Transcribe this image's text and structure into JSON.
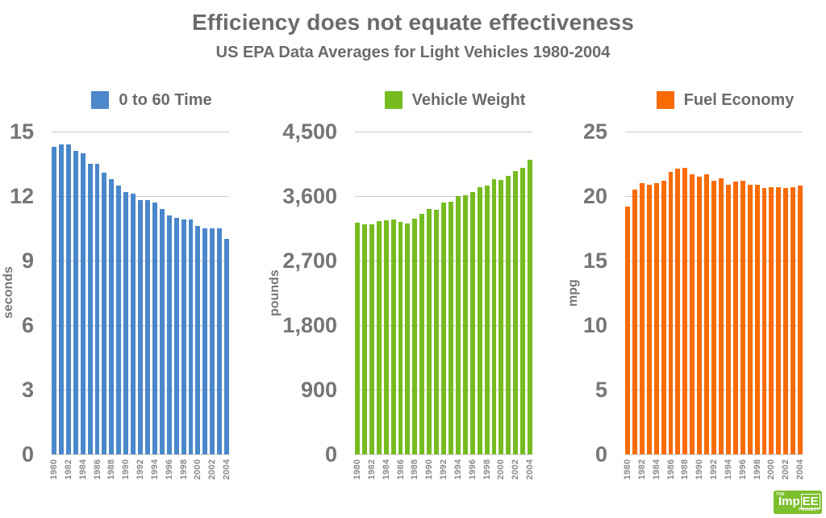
{
  "page": {
    "title": "Efficiency does not equate effectiveness",
    "subtitle": "US EPA Data Averages for Light Vehicles 1980-2004"
  },
  "colors": {
    "gridline": "#cbcbcb",
    "text_gray": "#6b6b6b",
    "tick_gray": "#767676",
    "year_gray": "#8a8a8a",
    "logo_green": "#7cbe2c"
  },
  "logo": {
    "the": "THE",
    "imp": "Imp",
    "ee": "EE",
    "project": "PROJECT"
  },
  "chart_data": [
    {
      "type": "bar",
      "legend": "0 to 60 Time",
      "color": "#4a87cb",
      "ylabel": "seconds",
      "xlabel": "",
      "ylim": [
        0,
        15
      ],
      "yticks": [
        0,
        3,
        6,
        9,
        12,
        15
      ],
      "ytick_labels": [
        "0",
        "3",
        "6",
        "9",
        "12",
        "15"
      ],
      "grid": true,
      "legend_position": "top",
      "xtick_every": 2,
      "categories": [
        "1980",
        "1981",
        "1982",
        "1983",
        "1984",
        "1985",
        "1986",
        "1987",
        "1988",
        "1989",
        "1990",
        "1991",
        "1992",
        "1993",
        "1994",
        "1995",
        "1996",
        "1997",
        "1998",
        "1999",
        "2000",
        "2001",
        "2002",
        "2003",
        "2004"
      ],
      "values": [
        14.3,
        14.4,
        14.4,
        14.1,
        14.0,
        13.5,
        13.5,
        13.1,
        12.8,
        12.5,
        12.2,
        12.1,
        11.8,
        11.8,
        11.7,
        11.4,
        11.1,
        11.0,
        10.9,
        10.9,
        10.6,
        10.5,
        10.5,
        10.5,
        10.0
      ]
    },
    {
      "type": "bar",
      "legend": "Vehicle Weight",
      "color": "#76bc21",
      "ylabel": "pounds",
      "xlabel": "",
      "ylim": [
        0,
        4500
      ],
      "yticks": [
        0,
        900,
        1800,
        2700,
        3600,
        4500
      ],
      "ytick_labels": [
        "0",
        "900",
        "1,800",
        "2,700",
        "3,600",
        "4,500"
      ],
      "grid": true,
      "legend_position": "top",
      "xtick_every": 2,
      "categories": [
        "1980",
        "1981",
        "1982",
        "1983",
        "1984",
        "1985",
        "1986",
        "1987",
        "1988",
        "1989",
        "1990",
        "1991",
        "1992",
        "1993",
        "1994",
        "1995",
        "1996",
        "1997",
        "1998",
        "1999",
        "2000",
        "2001",
        "2002",
        "2003",
        "2004"
      ],
      "values": [
        3228,
        3202,
        3202,
        3257,
        3262,
        3271,
        3238,
        3221,
        3283,
        3351,
        3426,
        3410,
        3512,
        3519,
        3603,
        3613,
        3659,
        3727,
        3744,
        3835,
        3821,
        3879,
        3951,
        3999,
        4111
      ]
    },
    {
      "type": "bar",
      "legend": "Fuel Economy",
      "color": "#f96b05",
      "ylabel": "mpg",
      "xlabel": "",
      "ylim": [
        0,
        25
      ],
      "yticks": [
        0,
        5,
        10,
        15,
        20,
        25
      ],
      "ytick_labels": [
        "0",
        "5",
        "10",
        "15",
        "20",
        "25"
      ],
      "grid": true,
      "legend_position": "top",
      "xtick_every": 2,
      "categories": [
        "1980",
        "1981",
        "1982",
        "1983",
        "1984",
        "1985",
        "1986",
        "1987",
        "1988",
        "1989",
        "1990",
        "1991",
        "1992",
        "1993",
        "1994",
        "1995",
        "1996",
        "1997",
        "1998",
        "1999",
        "2000",
        "2001",
        "2002",
        "2003",
        "2004"
      ],
      "values": [
        19.2,
        20.5,
        21.0,
        20.9,
        21.0,
        21.2,
        21.9,
        22.1,
        22.2,
        21.7,
        21.5,
        21.7,
        21.2,
        21.4,
        20.9,
        21.1,
        21.2,
        20.9,
        20.9,
        20.6,
        20.7,
        20.7,
        20.6,
        20.7,
        20.8
      ]
    }
  ]
}
